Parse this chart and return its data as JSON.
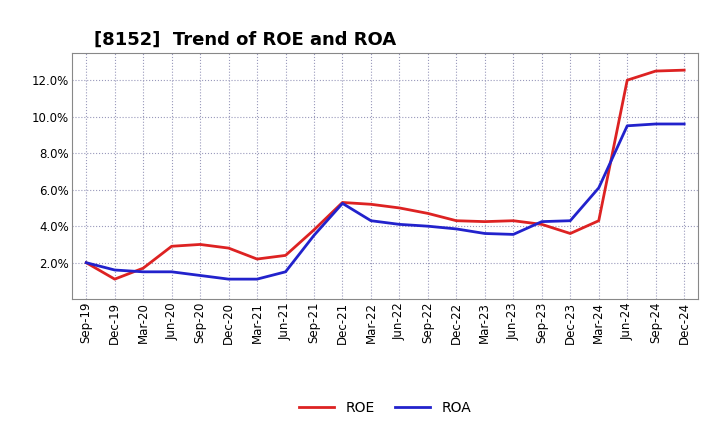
{
  "title": "[8152]  Trend of ROE and ROA",
  "x_labels": [
    "Sep-19",
    "Dec-19",
    "Mar-20",
    "Jun-20",
    "Sep-20",
    "Dec-20",
    "Mar-21",
    "Jun-21",
    "Sep-21",
    "Dec-21",
    "Mar-22",
    "Jun-22",
    "Sep-22",
    "Dec-22",
    "Mar-23",
    "Jun-23",
    "Sep-23",
    "Dec-23",
    "Mar-24",
    "Jun-24",
    "Sep-24",
    "Dec-24"
  ],
  "roe": [
    2.0,
    1.1,
    1.7,
    2.9,
    3.0,
    2.8,
    2.2,
    2.4,
    3.8,
    5.3,
    5.2,
    5.0,
    4.7,
    4.3,
    4.25,
    4.3,
    4.1,
    3.6,
    4.3,
    12.0,
    12.5,
    12.55
  ],
  "roa": [
    2.0,
    1.6,
    1.5,
    1.5,
    1.3,
    1.1,
    1.1,
    1.5,
    3.5,
    5.25,
    4.3,
    4.1,
    4.0,
    3.85,
    3.6,
    3.55,
    4.25,
    4.3,
    6.1,
    9.5,
    9.6,
    9.6
  ],
  "roe_color": "#dd2222",
  "roa_color": "#2222cc",
  "bg_color": "#ffffff",
  "plot_bg_color": "#ffffff",
  "grid_color": "#9999bb",
  "ylim": [
    0,
    13.5
  ],
  "yticks": [
    2.0,
    4.0,
    6.0,
    8.0,
    10.0,
    12.0
  ],
  "line_width": 2.0,
  "title_fontsize": 13,
  "legend_fontsize": 10,
  "tick_fontsize": 8.5
}
